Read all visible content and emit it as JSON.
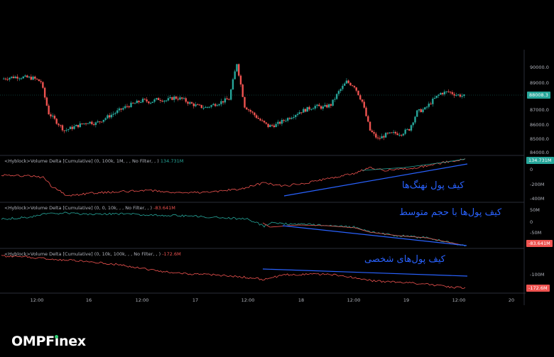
{
  "price_axis": [
    "90000.0",
    "89000.0",
    "87000.0",
    "86000.0",
    "85000.0",
    "84000.0"
  ],
  "last_price": "88008.3",
  "panes": [
    {
      "label": "<Hyblock>Volume Delta [Cumulative] (0, 100k, 1M, , , No Filter, , )",
      "value": "134.731M",
      "color": "#26a69a",
      "axis": [
        "0",
        "-200M",
        "-400M"
      ],
      "tag": "134.731M",
      "annotation": "کیف پول نهنگ‌ها"
    },
    {
      "label": "<Hyblock>Volume Delta [Cumulative] (0, 0, 10k, , , No Filter, , )",
      "value": "-83.641M",
      "color": "#ef5350",
      "axis": [
        "50M",
        "0",
        "-50M"
      ],
      "tag": "-83.641M",
      "annotation": "کیف پول‌ها با حجم متوسط"
    },
    {
      "label": "<Hyblock>Volume Delta [Cumulative] (0, 10k, 100k, , , No Filter, , )",
      "value": "-172.6M",
      "color": "#ef5350",
      "axis": [
        "-100M",
        "-172.6M"
      ],
      "tag": "-172.6M",
      "annotation": "کیف پول‌های شخصی"
    }
  ],
  "time_axis": [
    "12:00",
    "16",
    "12:00",
    "17",
    "12:00",
    "18",
    "12:00",
    "19",
    "12:00",
    "20"
  ],
  "colors": {
    "up": "#26a69a",
    "down": "#ef5350",
    "trendline": "#2962ff"
  },
  "logo": {
    "prefix": "OMPF",
    "i": "i",
    "suffix": "nex"
  },
  "chart_data": {
    "type": "candlestick",
    "price_close_approx": [
      89200,
      89300,
      89350,
      89300,
      89250,
      89000,
      86800,
      86200,
      85600,
      85800,
      86000,
      86200,
      86100,
      86400,
      86700,
      87000,
      87300,
      87500,
      87700,
      87600,
      87800,
      87700,
      87900,
      87800,
      87500,
      87300,
      87200,
      87400,
      87600,
      87800,
      90300,
      87300,
      86800,
      86300,
      85900,
      86000,
      86300,
      86600,
      86900,
      87100,
      87300,
      87200,
      87400,
      88300,
      89000,
      88700,
      87600,
      85600,
      85000,
      85300,
      85400,
      85400,
      85700,
      86900,
      87100,
      87700,
      88200,
      88300,
      88100,
      88000
    ],
    "indicators": [
      "Volume Delta Cumulative 100k-1M",
      "Volume Delta Cumulative 0-10k",
      "Volume Delta Cumulative 10k-100k"
    ]
  }
}
